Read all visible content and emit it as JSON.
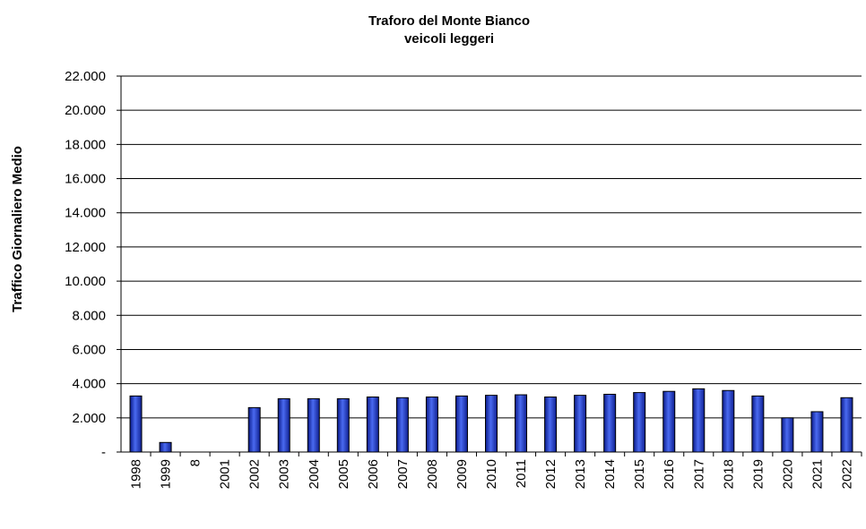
{
  "chart_data": {
    "type": "bar",
    "title": "Traforo del Monte Bianco",
    "subtitle": "veicoli leggeri",
    "xlabel": "",
    "ylabel": "Traffico Giornaliero Medio",
    "categories": [
      "1998",
      "1999",
      "8",
      "2001",
      "2002",
      "2003",
      "2004",
      "2005",
      "2006",
      "2007",
      "2008",
      "2009",
      "2010",
      "2011",
      "2012",
      "2013",
      "2014",
      "2015",
      "2016",
      "2017",
      "2018",
      "2019",
      "2020",
      "2021",
      "2022"
    ],
    "values": [
      3280,
      560,
      0,
      0,
      2600,
      3120,
      3120,
      3120,
      3220,
      3180,
      3220,
      3280,
      3320,
      3350,
      3220,
      3320,
      3380,
      3480,
      3550,
      3700,
      3600,
      3280,
      2000,
      2360,
      3180
    ],
    "ylim": [
      0,
      22000
    ],
    "yticks": [
      0,
      2000,
      4000,
      6000,
      8000,
      10000,
      12000,
      14000,
      16000,
      18000,
      20000,
      22000
    ],
    "ytick_labels": [
      "-",
      "2.000",
      "4.000",
      "6.000",
      "8.000",
      "10.000",
      "12.000",
      "14.000",
      "16.000",
      "18.000",
      "20.000",
      "22.000"
    ],
    "grid": true,
    "bar_color": "#2a3fcf"
  }
}
